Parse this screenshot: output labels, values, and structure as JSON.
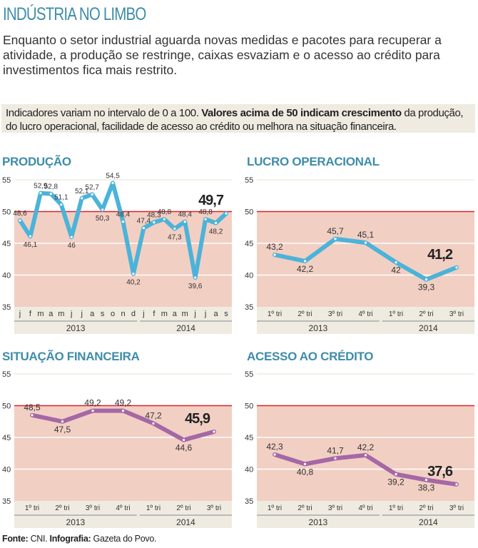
{
  "title": "INDÚSTRIA NO LIMBO",
  "intro": "Enquanto o setor industrial aguarda novas medidas e pacotes para recuperar a atividade, a produção se restringe, caixas esvaziam e o acesso ao crédito para investimentos fica mais restrito.",
  "note": {
    "part1": "Indicadores variam no intervalo de 0 a 100. ",
    "bold": "Valores acima de 50 indicam crescimento",
    "part2": " da produção, do lucro operacional, facilidade de acesso ao crédito ou melhora na situação financeira."
  },
  "source": {
    "label1": "Fonte:",
    "value1": " CNI. ",
    "label2": "Infografia:",
    "value2": " Gazeta do Povo."
  },
  "colors": {
    "title": "#3d8cab",
    "blue_line": "#4bb3d9",
    "purple_line": "#a468a6",
    "below50_fill": "#f2cfc3",
    "threshold_line": "#d8232a",
    "axis_band": "#efebe1"
  },
  "chart_data": [
    {
      "type": "line",
      "title": "PRODUÇÃO",
      "ylim": [
        35,
        55
      ],
      "yticks": [
        35,
        40,
        45,
        50,
        55
      ],
      "threshold": 50,
      "color": "#4bb3d9",
      "categories": [
        "j",
        "f",
        "m",
        "a",
        "m",
        "j",
        "j",
        "a",
        "s",
        "o",
        "n",
        "d",
        "j",
        "f",
        "m",
        "a",
        "m",
        "j",
        "j",
        "a",
        "s"
      ],
      "groups": [
        {
          "label": "2013",
          "count": 12
        },
        {
          "label": "2014",
          "count": 9
        }
      ],
      "values": [
        48.6,
        46.1,
        52.9,
        52.8,
        51.1,
        46,
        52.1,
        52.7,
        50.3,
        54.5,
        48.4,
        40.2,
        47.4,
        48.3,
        48.8,
        47.3,
        48.4,
        39.6,
        48.8,
        48.2,
        49.7
      ],
      "labels": [
        "48,6",
        "46,1",
        "52,9",
        "52,8",
        "51,1",
        "46",
        "52,1",
        "52,7",
        "50,3",
        "54,5",
        "48,4",
        "40,2",
        "47,4",
        "48,3",
        "48,8",
        "47,3",
        "48,4",
        "39,6",
        "48,8",
        "48,2",
        "49,7"
      ]
    },
    {
      "type": "line",
      "title": "LUCRO OPERACIONAL",
      "ylim": [
        35,
        55
      ],
      "yticks": [
        35,
        40,
        45,
        50,
        55
      ],
      "threshold": 50,
      "color": "#4bb3d9",
      "categories": [
        "1º tri",
        "2º tri",
        "3º tri",
        "4º tri",
        "1º tri",
        "2º tri",
        "3º tri"
      ],
      "groups": [
        {
          "label": "2013",
          "count": 4
        },
        {
          "label": "2014",
          "count": 3
        }
      ],
      "values": [
        43.2,
        42.2,
        45.7,
        45.1,
        42,
        39.3,
        41.2
      ],
      "labels": [
        "43,2",
        "42,2",
        "45,7",
        "45,1",
        "42",
        "39,3",
        "41,2"
      ]
    },
    {
      "type": "line",
      "title": "SITUAÇÃO FINANCEIRA",
      "ylim": [
        35,
        55
      ],
      "yticks": [
        35,
        40,
        45,
        50,
        55
      ],
      "threshold": 50,
      "color": "#a468a6",
      "categories": [
        "1º tri",
        "2º tri",
        "3º tri",
        "4º tri",
        "1º tri",
        "2º tri",
        "3º tri"
      ],
      "groups": [
        {
          "label": "2013",
          "count": 4
        },
        {
          "label": "2014",
          "count": 3
        }
      ],
      "values": [
        48.5,
        47.5,
        49.2,
        49.2,
        47.2,
        44.6,
        45.9
      ],
      "labels": [
        "48,5",
        "47,5",
        "49,2",
        "49,2",
        "47,2",
        "44,6",
        "45,9"
      ]
    },
    {
      "type": "line",
      "title": "ACESSO AO CRÉDITO",
      "ylim": [
        35,
        55
      ],
      "yticks": [
        35,
        40,
        45,
        50,
        55
      ],
      "threshold": 50,
      "color": "#a468a6",
      "categories": [
        "1º tri",
        "2º tri",
        "3º tri",
        "4º tri",
        "1º tri",
        "2º tri",
        "3º tri"
      ],
      "groups": [
        {
          "label": "2013",
          "count": 4
        },
        {
          "label": "2014",
          "count": 3
        }
      ],
      "values": [
        42.3,
        40.8,
        41.7,
        42.2,
        39.2,
        38.3,
        37.6
      ],
      "labels": [
        "42,3",
        "40,8",
        "41,7",
        "42,2",
        "39,2",
        "38,3",
        "37,6"
      ]
    }
  ]
}
